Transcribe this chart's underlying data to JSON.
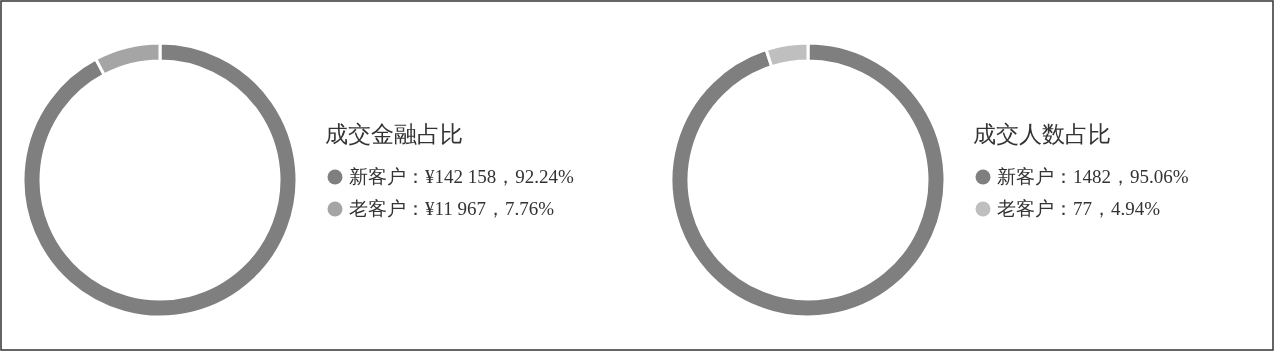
{
  "chart_data": [
    {
      "type": "donut",
      "title": "成交金融占比",
      "categories": [
        "新客户：¥142 158，92.24%",
        "老客户：¥11 967，7.76%"
      ],
      "values": [
        142158,
        11967
      ],
      "colors": [
        "#7f7f7f",
        "#a5a5a5"
      ],
      "legend": "right"
    },
    {
      "type": "donut",
      "title": "成交人数占比",
      "categories": [
        "新客户：1482，95.06%",
        "老客户：77，4.94%"
      ],
      "values": [
        1482,
        77
      ],
      "colors": [
        "#7f7f7f",
        "#bfbfbf"
      ],
      "legend": "right"
    }
  ]
}
